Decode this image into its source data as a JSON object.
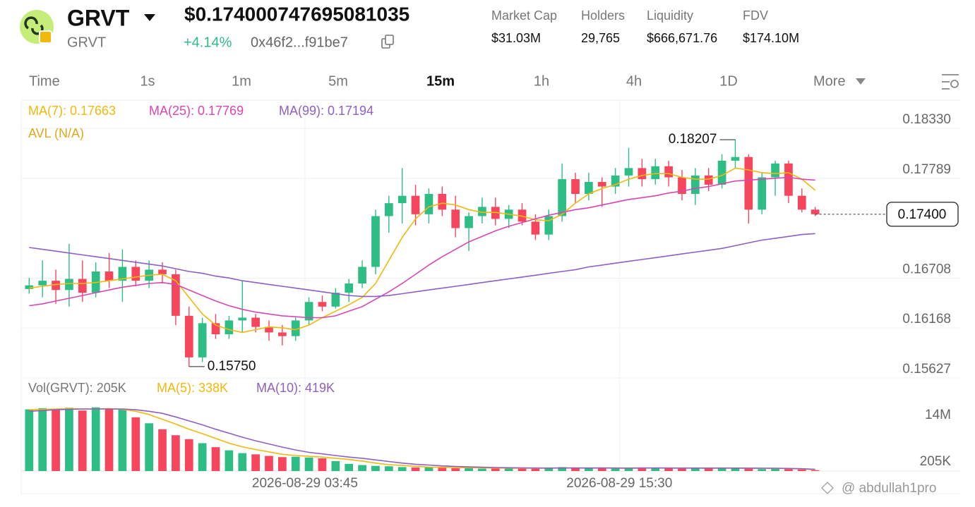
{
  "header": {
    "token": "GRVT",
    "token_sub": "GRVT",
    "price": "$0.174000747695081035",
    "change": "+4.14%",
    "address": "0x46f2...f91be7",
    "stats": [
      {
        "label": "Market Cap",
        "value": "$31.03M"
      },
      {
        "label": "Holders",
        "value": "29,765"
      },
      {
        "label": "Liquidity",
        "value": "$666,671.76"
      },
      {
        "label": "FDV",
        "value": "$174.10M"
      }
    ]
  },
  "tabs": [
    "Time",
    "1s",
    "1m",
    "5m",
    "15m",
    "1h",
    "4h",
    "1D",
    "More"
  ],
  "active_tab": "15m",
  "watermark": "@ abdullah1pro",
  "chart_data": {
    "type": "candlestick",
    "x": [
      0,
      1,
      2,
      3,
      4,
      5,
      6,
      7,
      8,
      9,
      10,
      11,
      12,
      13,
      14,
      15,
      16,
      17,
      18,
      19,
      20,
      21,
      22,
      23,
      24,
      25,
      26,
      27,
      28,
      29,
      30,
      31,
      32,
      33,
      34,
      35,
      36,
      37,
      38,
      39,
      40,
      41,
      42,
      43,
      44,
      45,
      46,
      47,
      48,
      49,
      50,
      51,
      52,
      53,
      54,
      55,
      56,
      57,
      58,
      59
    ],
    "xlim": [
      -0.6,
      59.6
    ],
    "xticks": [
      {
        "value": 20.7,
        "label": "2026-08-29 03:45"
      },
      {
        "value": 44.3,
        "label": "2026-08-29 15:30"
      }
    ],
    "ylim": [
      0.15627,
      0.18636
    ],
    "yticks": [
      {
        "value": 0.1833,
        "label": "0.18330"
      },
      {
        "value": 0.17789,
        "label": "0.17789"
      },
      {
        "value": 0.16708,
        "label": "0.16708"
      },
      {
        "value": 0.16168,
        "label": "0.16168"
      },
      {
        "value": 0.15627,
        "label": "0.15627"
      }
    ],
    "grid": true,
    "up_color": "#2ebd85",
    "down_color": "#f6465d",
    "open": [
      0.1659,
      0.1663,
      0.1668,
      0.1658,
      0.167,
      0.1655,
      0.1678,
      0.1668,
      0.1683,
      0.1668,
      0.168,
      0.1675,
      0.163,
      0.1585,
      0.1622,
      0.161,
      0.1625,
      0.1628,
      0.1618,
      0.1612,
      0.1608,
      0.1625,
      0.1645,
      0.164,
      0.1655,
      0.1665,
      0.1683,
      0.1738,
      0.1752,
      0.176,
      0.174,
      0.1762,
      0.1745,
      0.1725,
      0.1738,
      0.1748,
      0.1735,
      0.1745,
      0.1732,
      0.1718,
      0.1738,
      0.1778,
      0.1762,
      0.1775,
      0.177,
      0.1782,
      0.179,
      0.1778,
      0.1792,
      0.178,
      0.1762,
      0.1782,
      0.1772,
      0.1798,
      0.1802,
      0.1745,
      0.178,
      0.1795,
      0.176,
      0.1745
    ],
    "high": [
      0.1671,
      0.169,
      0.168,
      0.1708,
      0.169,
      0.1688,
      0.1698,
      0.1702,
      0.169,
      0.169,
      0.1688,
      0.168,
      0.164,
      0.1628,
      0.1632,
      0.163,
      0.1668,
      0.1632,
      0.1625,
      0.162,
      0.1628,
      0.165,
      0.1652,
      0.166,
      0.167,
      0.169,
      0.1745,
      0.176,
      0.179,
      0.1772,
      0.1768,
      0.177,
      0.176,
      0.1742,
      0.1758,
      0.1758,
      0.175,
      0.1752,
      0.174,
      0.1745,
      0.1795,
      0.1785,
      0.1785,
      0.178,
      0.179,
      0.1812,
      0.18,
      0.18,
      0.1798,
      0.1788,
      0.179,
      0.179,
      0.1805,
      0.18207,
      0.1805,
      0.1785,
      0.1798,
      0.1798,
      0.1768,
      0.1748
    ],
    "low": [
      0.1654,
      0.165,
      0.1643,
      0.164,
      0.1645,
      0.165,
      0.166,
      0.1645,
      0.1662,
      0.166,
      0.1665,
      0.162,
      0.1575,
      0.158,
      0.1605,
      0.1605,
      0.1612,
      0.1612,
      0.1603,
      0.1598,
      0.1603,
      0.162,
      0.1635,
      0.1638,
      0.1645,
      0.166,
      0.1675,
      0.172,
      0.173,
      0.1728,
      0.173,
      0.1738,
      0.1715,
      0.17,
      0.173,
      0.1728,
      0.1725,
      0.1728,
      0.1712,
      0.1712,
      0.1732,
      0.1752,
      0.1755,
      0.1748,
      0.1762,
      0.177,
      0.177,
      0.1772,
      0.177,
      0.1755,
      0.175,
      0.1765,
      0.1768,
      0.179,
      0.173,
      0.174,
      0.176,
      0.1752,
      0.1742,
      0.1738
    ],
    "close": [
      0.1663,
      0.1668,
      0.1658,
      0.167,
      0.1655,
      0.1678,
      0.1668,
      0.1683,
      0.1668,
      0.168,
      0.1675,
      0.163,
      0.1585,
      0.1622,
      0.161,
      0.1625,
      0.1628,
      0.1618,
      0.1612,
      0.1608,
      0.1625,
      0.1645,
      0.164,
      0.1655,
      0.1665,
      0.1683,
      0.1738,
      0.1752,
      0.176,
      0.174,
      0.1762,
      0.1745,
      0.1725,
      0.1738,
      0.1748,
      0.1735,
      0.1745,
      0.1732,
      0.1718,
      0.1738,
      0.1778,
      0.1762,
      0.1775,
      0.177,
      0.1782,
      0.179,
      0.1778,
      0.1792,
      0.178,
      0.1762,
      0.1782,
      0.1772,
      0.1798,
      0.1802,
      0.1745,
      0.178,
      0.1795,
      0.176,
      0.1745,
      0.174
    ],
    "lines": [
      {
        "name": "MA(7): 0.17663",
        "color": "#f0b90b",
        "values": [
          0.166,
          0.1662,
          0.1664,
          0.1665,
          0.1665,
          0.1666,
          0.1668,
          0.167,
          0.1672,
          0.1674,
          0.1675,
          0.1668,
          0.165,
          0.1632,
          0.162,
          0.1615,
          0.1612,
          0.1615,
          0.1618,
          0.1617,
          0.1615,
          0.162,
          0.1628,
          0.1635,
          0.1642,
          0.165,
          0.1665,
          0.169,
          0.1715,
          0.1735,
          0.1748,
          0.1752,
          0.175,
          0.1745,
          0.1742,
          0.1742,
          0.174,
          0.1738,
          0.1734,
          0.1733,
          0.174,
          0.1752,
          0.1762,
          0.1768,
          0.1772,
          0.1778,
          0.1782,
          0.1784,
          0.1784,
          0.178,
          0.1778,
          0.1778,
          0.1782,
          0.179,
          0.1788,
          0.1785,
          0.1784,
          0.1785,
          0.1778,
          0.1766
        ]
      },
      {
        "name": "MA(25): 0.17769",
        "color": "#d946b3",
        "values": [
          0.1641,
          0.1643,
          0.1646,
          0.1649,
          0.1652,
          0.1655,
          0.1658,
          0.1661,
          0.1663,
          0.1665,
          0.1666,
          0.1664,
          0.1658,
          0.1652,
          0.1646,
          0.1641,
          0.1637,
          0.1634,
          0.1632,
          0.163,
          0.1629,
          0.1628,
          0.1628,
          0.163,
          0.1635,
          0.164,
          0.1648,
          0.1656,
          0.1665,
          0.1675,
          0.1685,
          0.1694,
          0.1702,
          0.171,
          0.1716,
          0.1722,
          0.1727,
          0.1731,
          0.1735,
          0.1739,
          0.1742,
          0.1745,
          0.1747,
          0.175,
          0.1753,
          0.1756,
          0.1758,
          0.176,
          0.1763,
          0.1765,
          0.1768,
          0.177,
          0.1773,
          0.1776,
          0.1777,
          0.1778,
          0.1779,
          0.178,
          0.1778,
          0.1777
        ]
      },
      {
        "name": "MA(99): 0.17194",
        "color": "#8e5fc4",
        "values": [
          0.1704,
          0.1702,
          0.17,
          0.1698,
          0.1696,
          0.1694,
          0.1692,
          0.169,
          0.1688,
          0.1686,
          0.1684,
          0.1681,
          0.1678,
          0.1676,
          0.1673,
          0.1671,
          0.1668,
          0.1666,
          0.1664,
          0.1662,
          0.166,
          0.1658,
          0.1656,
          0.1654,
          0.1652,
          0.1651,
          0.1651,
          0.1652,
          0.1654,
          0.1656,
          0.1658,
          0.166,
          0.1662,
          0.1664,
          0.1666,
          0.1668,
          0.167,
          0.1672,
          0.1674,
          0.1676,
          0.1678,
          0.168,
          0.1683,
          0.1685,
          0.1687,
          0.1689,
          0.1691,
          0.1693,
          0.1695,
          0.1697,
          0.1699,
          0.1701,
          0.1703,
          0.1706,
          0.1709,
          0.1712,
          0.1714,
          0.1716,
          0.1718,
          0.1719
        ]
      }
    ],
    "avl": "AVL (N/A)",
    "annotations": [
      {
        "x": 53,
        "value": 0.18207
      },
      {
        "x": 12,
        "value": 0.1575,
        "label": "0.15750"
      }
    ],
    "current_price": {
      "value": 0.174,
      "label": "0.17400"
    },
    "volume": {
      "name": "Vol(GRVT): 205K",
      "ylim": [
        0,
        17.72
      ],
      "yticks": [
        {
          "value": 14,
          "label": "14M"
        }
      ],
      "values": [
        15.5,
        15.8,
        15.6,
        15.9,
        15.2,
        16.0,
        15.7,
        15.5,
        13.5,
        12.0,
        10.5,
        9.0,
        8.0,
        7.0,
        6.0,
        5.2,
        4.5,
        4.2,
        3.8,
        3.5,
        3.6,
        3.4,
        3.2,
        2.5,
        1.8,
        1.5,
        1.3,
        1.2,
        1.0,
        0.9,
        0.9,
        0.8,
        0.7,
        0.8,
        0.6,
        0.7,
        0.8,
        0.7,
        0.6,
        0.9,
        1.0,
        0.8,
        0.7,
        0.8,
        0.6,
        0.7,
        0.9,
        0.8,
        0.7,
        0.6,
        0.8,
        0.7,
        0.9,
        0.8,
        0.6,
        0.5,
        0.6,
        0.5,
        0.4,
        0.205
      ],
      "current": {
        "value": 0.205,
        "label": "205K"
      },
      "lines": [
        {
          "name": "MA(5): 338K",
          "color": "#f0b90b",
          "values": [
            15.4,
            15.5,
            15.6,
            15.7,
            15.6,
            15.6,
            15.7,
            15.5,
            15.0,
            14.2,
            13.0,
            11.8,
            10.5,
            9.4,
            8.2,
            7.0,
            6.1,
            5.4,
            4.8,
            4.2,
            3.9,
            3.7,
            3.5,
            3.2,
            2.9,
            2.5,
            2.0,
            1.6,
            1.4,
            1.2,
            1.0,
            0.95,
            0.9,
            0.85,
            0.8,
            0.75,
            0.74,
            0.72,
            0.7,
            0.74,
            0.8,
            0.8,
            0.8,
            0.8,
            0.78,
            0.72,
            0.74,
            0.76,
            0.74,
            0.74,
            0.76,
            0.72,
            0.74,
            0.76,
            0.72,
            0.7,
            0.68,
            0.62,
            0.52,
            0.338
          ]
        },
        {
          "name": "MA(10): 419K",
          "color": "#8e5fc4",
          "values": [
            15.0,
            15.2,
            15.4,
            15.5,
            15.6,
            15.6,
            15.6,
            15.6,
            15.4,
            15.0,
            14.5,
            13.6,
            12.6,
            11.6,
            10.5,
            9.5,
            8.5,
            7.6,
            6.8,
            6.0,
            5.3,
            4.7,
            4.3,
            3.9,
            3.5,
            3.2,
            2.8,
            2.4,
            2.0,
            1.7,
            1.5,
            1.3,
            1.15,
            1.05,
            0.95,
            0.88,
            0.84,
            0.8,
            0.76,
            0.75,
            0.76,
            0.76,
            0.75,
            0.76,
            0.75,
            0.75,
            0.76,
            0.77,
            0.76,
            0.74,
            0.74,
            0.74,
            0.75,
            0.75,
            0.73,
            0.71,
            0.7,
            0.66,
            0.58,
            0.419
          ]
        }
      ]
    }
  }
}
